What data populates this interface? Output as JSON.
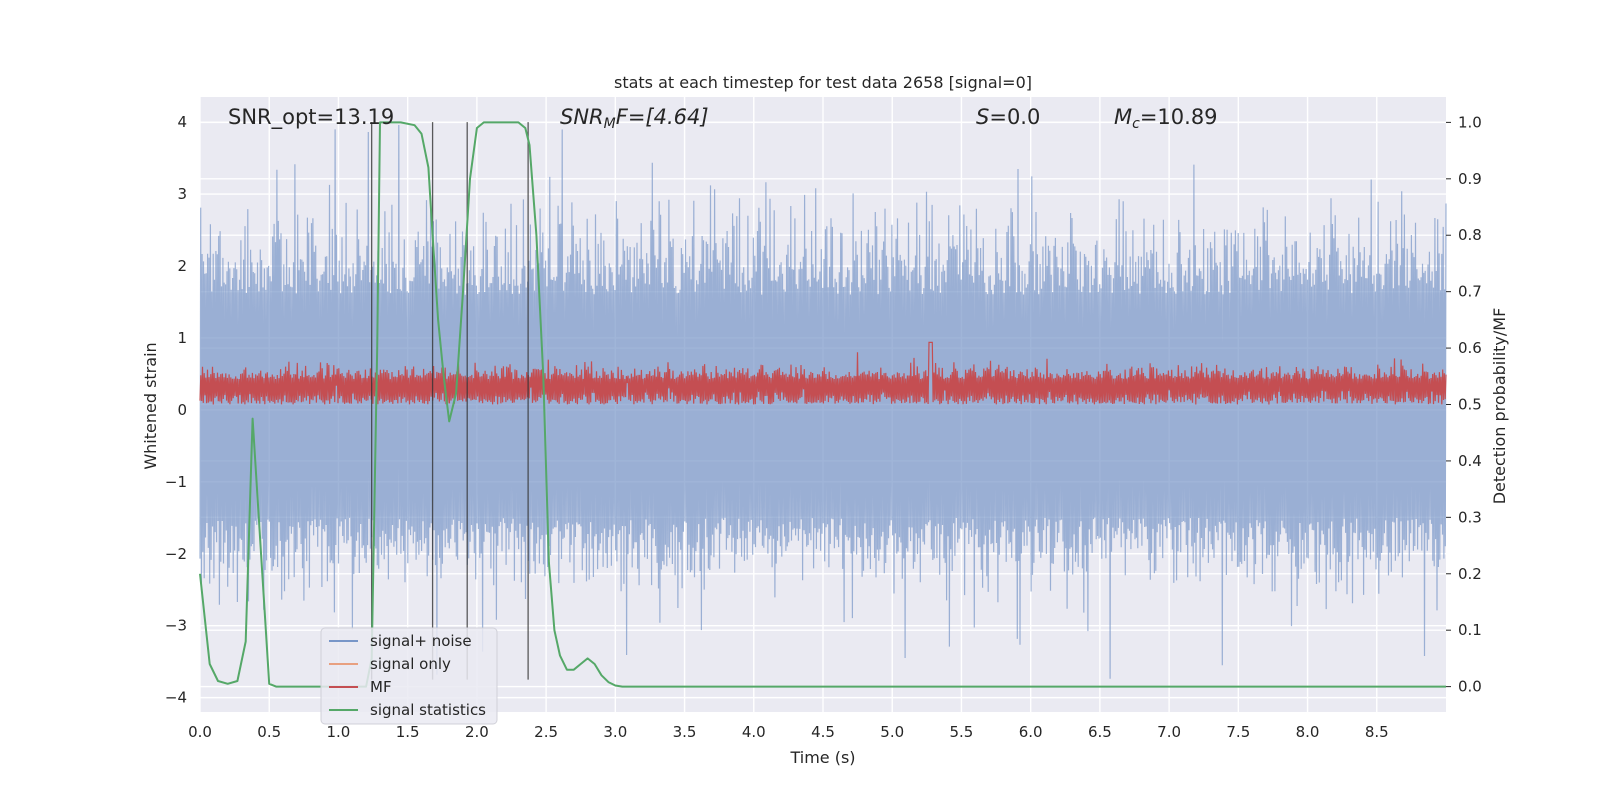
{
  "chart_data": {
    "type": "line",
    "title": "stats at each timestep for test data 2658 [signal=0]",
    "xlabel": "Time (s)",
    "ylabel_left": "Whitened strain",
    "ylabel_right": "Detection probability/MF",
    "xlim": [
      0.0,
      9.0
    ],
    "ylim_left": [
      -4.2,
      4.35
    ],
    "ylim_right": [
      -0.045,
      1.045
    ],
    "x_ticks": [
      "0.0",
      "0.5",
      "1.0",
      "1.5",
      "2.0",
      "2.5",
      "3.0",
      "3.5",
      "4.0",
      "4.5",
      "5.0",
      "5.5",
      "6.0",
      "6.5",
      "7.0",
      "7.5",
      "8.0",
      "8.5"
    ],
    "y_left_ticks": [
      "4",
      "3",
      "2",
      "1",
      "0",
      "−1",
      "−2",
      "−3",
      "−4"
    ],
    "y_right_ticks": [
      "1.0",
      "0.9",
      "0.8",
      "0.7",
      "0.6",
      "0.5",
      "0.4",
      "0.3",
      "0.2",
      "0.1",
      "0.0"
    ],
    "grid": true,
    "legend_position": "lower-left",
    "annotations": {
      "snr_opt": "SNR_opt=13.19",
      "snr_mf_main": "SNR",
      "snr_mf_sub": "M",
      "snr_mf_rest": "F=[4.64]",
      "s_main": "S",
      "s_rest": "=0.0",
      "mc_main": "M",
      "mc_sub": "c",
      "mc_rest": "=10.89"
    },
    "series": [
      {
        "name": "signal+ noise",
        "axis": "left",
        "color": "#7896c8",
        "style": "dense noise band",
        "band_lower_typical": -1.5,
        "band_upper_typical": 1.6,
        "peak_max": 4.0,
        "peak_min": -3.75
      },
      {
        "name": "signal only",
        "axis": "left",
        "color": "#e8a080",
        "values": []
      },
      {
        "name": "MF",
        "axis": "right",
        "color": "#c44e52",
        "style": "noisy band",
        "band_lower": 0.5,
        "band_upper": 0.56,
        "peak_x": 5.28,
        "peak_value": 0.61
      },
      {
        "name": "signal statistics",
        "axis": "right",
        "color": "#55a868",
        "x": [
          0.0,
          0.07,
          0.13,
          0.2,
          0.27,
          0.33,
          0.38,
          0.45,
          0.5,
          0.55,
          0.6,
          1.0,
          1.2,
          1.24,
          1.28,
          1.3,
          1.35,
          1.45,
          1.55,
          1.6,
          1.65,
          1.68,
          1.72,
          1.76,
          1.8,
          1.85,
          1.9,
          1.95,
          2.0,
          2.05,
          2.1,
          2.2,
          2.3,
          2.35,
          2.38,
          2.43,
          2.48,
          2.52,
          2.56,
          2.6,
          2.65,
          2.7,
          2.75,
          2.8,
          2.85,
          2.9,
          2.95,
          3.0,
          3.05,
          3.1,
          9.0
        ],
        "values": [
          0.2,
          0.04,
          0.01,
          0.005,
          0.01,
          0.08,
          0.475,
          0.2,
          0.005,
          0.0,
          0.0,
          0.0,
          0.0,
          0.05,
          0.6,
          1.0,
          1.0,
          1.0,
          0.995,
          0.98,
          0.92,
          0.8,
          0.65,
          0.55,
          0.47,
          0.52,
          0.7,
          0.9,
          0.99,
          1.0,
          1.0,
          1.0,
          1.0,
          0.99,
          0.96,
          0.8,
          0.55,
          0.22,
          0.1,
          0.055,
          0.03,
          0.03,
          0.04,
          0.05,
          0.04,
          0.02,
          0.008,
          0.002,
          0.0,
          0.0,
          0.0
        ]
      }
    ],
    "vertical_markers_x": [
      1.24,
      1.68,
      1.93,
      2.37
    ]
  }
}
